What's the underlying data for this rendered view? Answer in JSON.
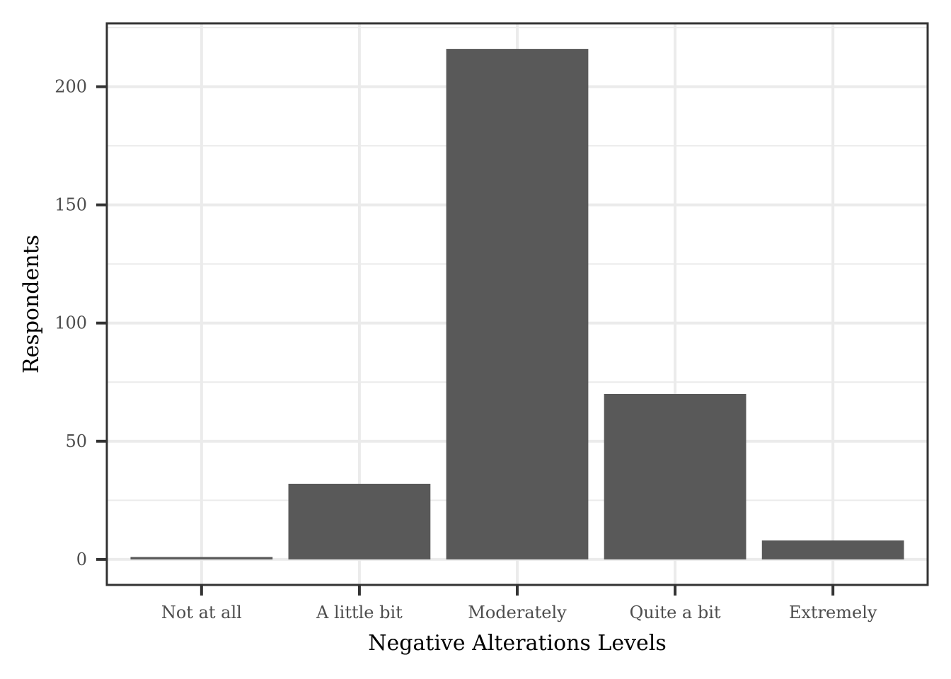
{
  "chart_data": {
    "type": "bar",
    "title": "",
    "xlabel": "Negative Alterations Levels",
    "ylabel": "Respondents",
    "categories": [
      "Not at all",
      "A little bit",
      "Moderately",
      "Quite a bit",
      "Extremely"
    ],
    "values": [
      1,
      32,
      216,
      70,
      8
    ],
    "ylim": [
      -10.8,
      226.8
    ],
    "yticks": [
      0,
      50,
      100,
      150,
      200
    ],
    "ytick_labels": [
      "0",
      "50",
      "100",
      "150",
      "200"
    ],
    "grid": true,
    "legend": "none",
    "colors": {
      "bar": "#595959",
      "grid_major": "#ebebeb",
      "grid_minor": "#ebebeb",
      "panel_border": "#333333",
      "tick": "#333333",
      "tick_label": "#4d4d4d",
      "axis_title": "#000000",
      "background": "#ffffff"
    }
  }
}
